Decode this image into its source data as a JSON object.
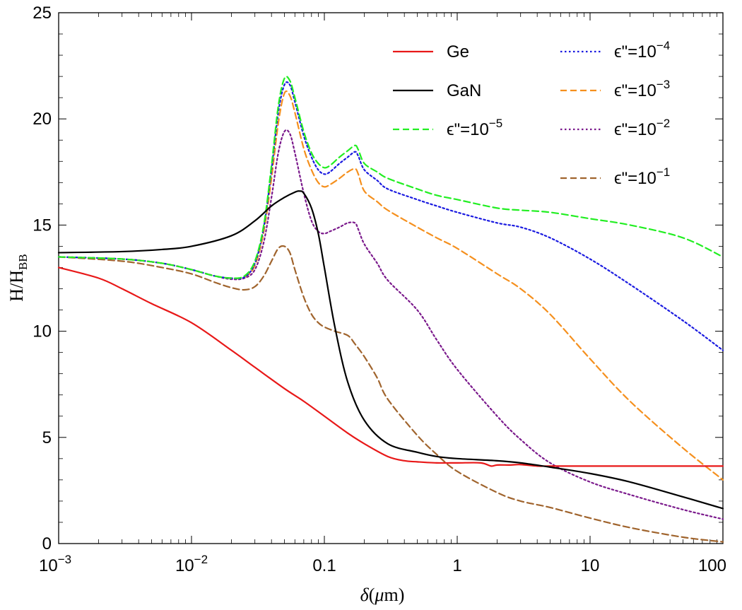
{
  "chart_data": {
    "type": "line",
    "title": "",
    "xlabel": "δ(μm)",
    "ylabel": "H/H_BB",
    "xscale": "log",
    "xlim": [
      0.001,
      100
    ],
    "ylim": [
      0,
      25
    ],
    "grid": false,
    "legend_position": "top-right",
    "x_tick_labels": [
      {
        "value": 0.001,
        "base": "10",
        "exp": "−3"
      },
      {
        "value": 0.01,
        "base": "10",
        "exp": "−2"
      },
      {
        "value": 0.1,
        "base": "0.1",
        "exp": ""
      },
      {
        "value": 1,
        "base": "1",
        "exp": ""
      },
      {
        "value": 10,
        "base": "10",
        "exp": ""
      },
      {
        "value": 100,
        "base": "100",
        "exp": ""
      }
    ],
    "y_ticks": [
      0,
      5,
      10,
      15,
      20,
      25
    ],
    "series": [
      {
        "name": "Ge",
        "label_base": "Ge",
        "label_exp": "",
        "color": "#e81818",
        "dash": "solid",
        "x": [
          0.001,
          0.002,
          0.003,
          0.005,
          0.01,
          0.02,
          0.03,
          0.05,
          0.07,
          0.1,
          0.15,
          0.2,
          0.3,
          0.4,
          0.5,
          0.7,
          1,
          1.5,
          1.8,
          2,
          2.5,
          3,
          4,
          5,
          10,
          20,
          50,
          100
        ],
        "y": [
          13.0,
          12.5,
          12.0,
          11.3,
          10.4,
          9.1,
          8.3,
          7.3,
          6.7,
          6.0,
          5.2,
          4.7,
          4.1,
          3.9,
          3.85,
          3.8,
          3.8,
          3.8,
          3.65,
          3.7,
          3.7,
          3.72,
          3.65,
          3.65,
          3.65,
          3.65,
          3.65,
          3.65
        ]
      },
      {
        "name": "GaN",
        "label_base": "GaN",
        "label_exp": "",
        "color": "#000000",
        "dash": "solid",
        "x": [
          0.001,
          0.003,
          0.006,
          0.01,
          0.02,
          0.03,
          0.04,
          0.05,
          0.06,
          0.065,
          0.07,
          0.08,
          0.09,
          0.1,
          0.12,
          0.15,
          0.2,
          0.3,
          0.5,
          0.7,
          1,
          2,
          3,
          5,
          10,
          20,
          50,
          100
        ],
        "y": [
          13.7,
          13.75,
          13.85,
          14.0,
          14.5,
          15.2,
          15.9,
          16.3,
          16.55,
          16.6,
          16.5,
          15.8,
          14.6,
          13.0,
          10.2,
          7.6,
          5.8,
          4.7,
          4.3,
          4.1,
          4.0,
          3.9,
          3.8,
          3.6,
          3.3,
          2.9,
          2.2,
          1.65
        ]
      },
      {
        "name": "ε\"=10^-5",
        "label_base": "ϵ\"=10",
        "label_exp": "−5",
        "color": "#22ee22",
        "dash": "dashed",
        "x": [
          0.001,
          0.003,
          0.006,
          0.01,
          0.015,
          0.02,
          0.025,
          0.03,
          0.035,
          0.04,
          0.045,
          0.05,
          0.055,
          0.06,
          0.07,
          0.08,
          0.09,
          0.1,
          0.11,
          0.13,
          0.15,
          0.17,
          0.18,
          0.2,
          0.25,
          0.3,
          0.5,
          0.7,
          1,
          2,
          3,
          5,
          10,
          20,
          50,
          100
        ],
        "y": [
          13.5,
          13.4,
          13.2,
          12.9,
          12.6,
          12.5,
          12.6,
          13.3,
          15.0,
          17.8,
          20.6,
          21.9,
          21.8,
          21.0,
          19.4,
          18.4,
          17.9,
          17.7,
          17.8,
          18.2,
          18.5,
          18.75,
          18.55,
          17.9,
          17.5,
          17.2,
          16.7,
          16.4,
          16.2,
          15.8,
          15.7,
          15.6,
          15.3,
          15.0,
          14.4,
          13.5
        ]
      },
      {
        "name": "ε\"=10^-4",
        "label_base": "ϵ\"=10",
        "label_exp": "−4",
        "color": "#1a1ae0",
        "dash": "dotted",
        "x": [
          0.001,
          0.003,
          0.006,
          0.01,
          0.015,
          0.02,
          0.025,
          0.03,
          0.035,
          0.04,
          0.045,
          0.05,
          0.055,
          0.06,
          0.07,
          0.08,
          0.09,
          0.1,
          0.11,
          0.13,
          0.15,
          0.17,
          0.18,
          0.2,
          0.25,
          0.3,
          0.5,
          0.7,
          1,
          2,
          3,
          5,
          10,
          20,
          50,
          100
        ],
        "y": [
          13.5,
          13.4,
          13.2,
          12.9,
          12.6,
          12.5,
          12.55,
          13.2,
          14.9,
          17.6,
          20.3,
          21.6,
          21.6,
          20.8,
          19.2,
          18.2,
          17.6,
          17.4,
          17.5,
          17.9,
          18.2,
          18.45,
          18.25,
          17.6,
          17.1,
          16.7,
          16.2,
          15.9,
          15.6,
          15.1,
          14.9,
          14.4,
          13.4,
          12.2,
          10.5,
          9.1
        ]
      },
      {
        "name": "ε\"=10^-3",
        "label_base": "ϵ\"=10",
        "label_exp": "−3",
        "color": "#f5901e",
        "dash": "dashed",
        "x": [
          0.001,
          0.003,
          0.006,
          0.01,
          0.015,
          0.02,
          0.025,
          0.03,
          0.035,
          0.04,
          0.045,
          0.05,
          0.055,
          0.06,
          0.07,
          0.08,
          0.09,
          0.1,
          0.11,
          0.13,
          0.15,
          0.17,
          0.18,
          0.2,
          0.25,
          0.3,
          0.5,
          0.7,
          1,
          2,
          3,
          5,
          10,
          20,
          50,
          100
        ],
        "y": [
          13.5,
          13.4,
          13.2,
          12.9,
          12.6,
          12.5,
          12.55,
          13.1,
          14.7,
          17.2,
          19.8,
          21.2,
          21.1,
          20.3,
          18.6,
          17.6,
          17.0,
          16.8,
          16.9,
          17.2,
          17.5,
          17.65,
          17.4,
          16.6,
          16.1,
          15.7,
          14.9,
          14.4,
          13.9,
          12.7,
          12.0,
          10.8,
          8.7,
          6.7,
          4.5,
          3.0
        ]
      },
      {
        "name": "ε\"=10^-2",
        "label_base": "ϵ\"=10",
        "label_exp": "−2",
        "color": "#7b1a8c",
        "dash": "dotted",
        "x": [
          0.001,
          0.003,
          0.006,
          0.01,
          0.015,
          0.02,
          0.025,
          0.03,
          0.035,
          0.04,
          0.045,
          0.05,
          0.055,
          0.06,
          0.07,
          0.08,
          0.09,
          0.1,
          0.11,
          0.13,
          0.15,
          0.17,
          0.18,
          0.2,
          0.25,
          0.3,
          0.5,
          0.7,
          1,
          2,
          3,
          5,
          10,
          20,
          50,
          100
        ],
        "y": [
          13.5,
          13.4,
          13.2,
          12.9,
          12.6,
          12.45,
          12.5,
          12.9,
          14.2,
          16.3,
          18.4,
          19.4,
          19.3,
          18.4,
          16.5,
          15.2,
          14.7,
          14.6,
          14.7,
          14.9,
          15.1,
          15.1,
          14.8,
          14.1,
          13.2,
          12.4,
          11.0,
          9.6,
          8.2,
          6.0,
          4.9,
          3.8,
          2.9,
          2.3,
          1.6,
          1.15
        ]
      },
      {
        "name": "ε\"=10^-1",
        "label_base": "ϵ\"=10",
        "label_exp": "−1",
        "color": "#a0642d",
        "dash": "dashed",
        "x": [
          0.001,
          0.003,
          0.006,
          0.01,
          0.015,
          0.02,
          0.025,
          0.03,
          0.035,
          0.04,
          0.045,
          0.05,
          0.055,
          0.06,
          0.07,
          0.08,
          0.09,
          0.1,
          0.12,
          0.15,
          0.17,
          0.2,
          0.25,
          0.3,
          0.5,
          0.7,
          1,
          2,
          3,
          5,
          10,
          20,
          50,
          100
        ],
        "y": [
          13.5,
          13.3,
          13.0,
          12.7,
          12.3,
          12.05,
          11.95,
          12.1,
          12.6,
          13.3,
          13.9,
          14.0,
          13.7,
          12.9,
          11.6,
          10.8,
          10.4,
          10.2,
          10.0,
          9.8,
          9.4,
          8.8,
          7.8,
          6.8,
          5.1,
          4.2,
          3.4,
          2.4,
          2.0,
          1.7,
          1.2,
          0.75,
          0.3,
          0.08
        ]
      }
    ]
  }
}
